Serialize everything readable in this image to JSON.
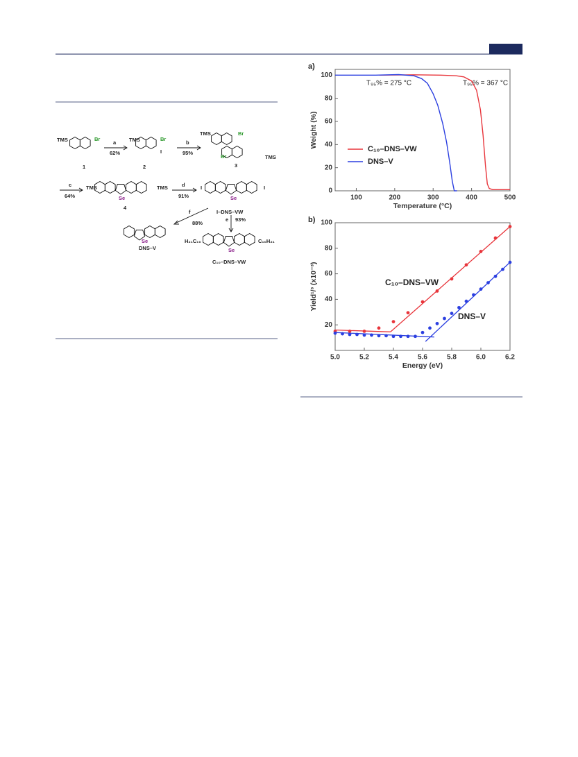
{
  "scheme": {
    "atoms": {
      "tms": "TMS",
      "br": "Br",
      "iodine": "I",
      "se": "Se",
      "h21c10": "H₂₁C₁₀",
      "c10h21": "C₁₀H₂₁"
    },
    "compounds": [
      "1",
      "2",
      "3",
      "4",
      "I–DNS–VW",
      "DNS–V",
      "C₁₀–DNS–VW"
    ],
    "steps": [
      {
        "reagent": "a",
        "yield": "62%"
      },
      {
        "reagent": "b",
        "yield": "95%"
      },
      {
        "reagent": "c",
        "yield": "64%"
      },
      {
        "reagent": "d",
        "yield": "91%"
      },
      {
        "reagent": "f",
        "yield": "88%"
      },
      {
        "reagent": "e",
        "yield": "93%"
      }
    ]
  },
  "chart_data": [
    {
      "type": "line",
      "panel": "a)",
      "xlabel": "Temperature (°C)",
      "ylabel": "Weight (%)",
      "xlim": [
        45,
        500
      ],
      "ylim": [
        0,
        105
      ],
      "xticks": [
        100,
        200,
        300,
        400,
        500
      ],
      "yticks": [
        0,
        20,
        40,
        60,
        80,
        100
      ],
      "legend": "lower left",
      "annotations": [
        {
          "text": "T₉₅% = 275 °C",
          "color": "#2b3fe0"
        },
        {
          "text": "T₉₅% = 367 °C",
          "color": "#e8353b"
        }
      ],
      "series": [
        {
          "name": "C₁₀–DNS–VW",
          "color": "#e8353b",
          "x": [
            160,
            250,
            320,
            360,
            380,
            400,
            413,
            423,
            430,
            436,
            441,
            446,
            455,
            500
          ],
          "values": [
            100,
            100.3,
            100,
            99.5,
            98.5,
            95,
            87,
            70,
            48,
            22,
            6,
            2,
            1,
            1
          ]
        },
        {
          "name": "DNS–V",
          "color": "#2b3fe0",
          "x": [
            45,
            150,
            210,
            250,
            270,
            285,
            300,
            312,
            325,
            335,
            343,
            350,
            355,
            362
          ],
          "values": [
            100,
            100,
            100.5,
            99.5,
            97,
            93,
            84,
            74,
            58,
            42,
            25,
            8,
            0,
            0
          ]
        }
      ]
    },
    {
      "type": "scatter",
      "panel": "b)",
      "xlabel": "Energy (eV)",
      "ylabel": "Yield¹/³ (x10⁻³)",
      "xlim": [
        5.0,
        6.2
      ],
      "ylim": [
        0,
        100
      ],
      "xticks": [
        {
          "value": 5,
          "label": "5.0"
        },
        5.2,
        5.4,
        5.6,
        5.8,
        {
          "value": 6,
          "label": "6.0"
        },
        6.2
      ],
      "yticks": [
        20,
        40,
        60,
        80,
        100
      ],
      "series": [
        {
          "name": "C₁₀–DNS–VW",
          "color": "#e8353b",
          "x": [
            5.0,
            5.1,
            5.2,
            5.3,
            5.4,
            5.5,
            5.6,
            5.7,
            5.8,
            5.9,
            6.0,
            6.1,
            6.2
          ],
          "values": [
            15,
            15,
            15,
            17.5,
            22.5,
            29.5,
            38,
            46.5,
            56,
            67,
            77.5,
            88,
            97
          ]
        },
        {
          "name": "DNS–V",
          "color": "#2b3fe0",
          "x": [
            5.0,
            5.05,
            5.1,
            5.15,
            5.2,
            5.25,
            5.3,
            5.35,
            5.4,
            5.45,
            5.5,
            5.55,
            5.6,
            5.65,
            5.7,
            5.75,
            5.8,
            5.85,
            5.9,
            5.95,
            6.0,
            6.05,
            6.1,
            6.15,
            6.2
          ],
          "values": [
            13.5,
            13,
            12.5,
            12.5,
            12,
            12,
            11.5,
            11.5,
            11,
            11,
            11,
            11,
            14,
            17.5,
            21,
            25,
            29,
            33.5,
            38.5,
            43.5,
            48,
            53,
            58,
            63.5,
            69
          ]
        }
      ],
      "fit_lines": [
        {
          "color": "#e8353b",
          "x": [
            5.0,
            5.38
          ],
          "values": [
            16,
            14.5
          ]
        },
        {
          "color": "#e8353b",
          "x": [
            5.38,
            6.2
          ],
          "values": [
            14.5,
            97
          ]
        },
        {
          "color": "#2b3fe0",
          "x": [
            5.0,
            5.68
          ],
          "values": [
            14,
            10.5
          ]
        },
        {
          "color": "#2b3fe0",
          "x": [
            5.62,
            6.2
          ],
          "values": [
            7,
            69
          ]
        }
      ]
    }
  ]
}
